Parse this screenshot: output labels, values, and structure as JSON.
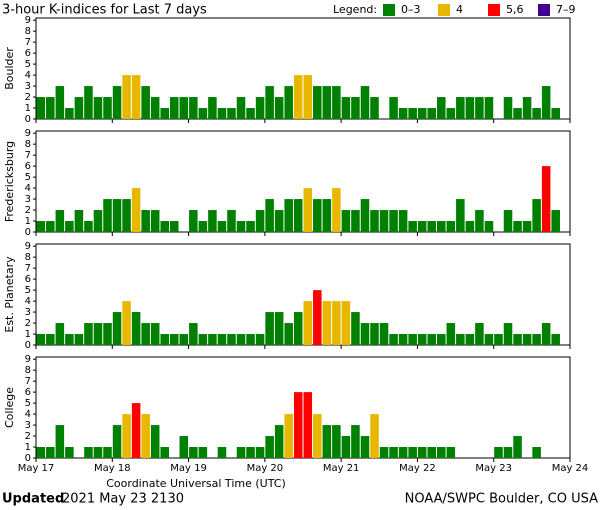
{
  "title": "3-hour K-indices for Last 7 days",
  "legend": {
    "title": "Legend:",
    "items": [
      {
        "label": "0–3",
        "color": "#008000"
      },
      {
        "label": "4",
        "color": "#e8b800"
      },
      {
        "label": "5,6",
        "color": "#ff0000"
      },
      {
        "label": "7–9",
        "color": "#400090"
      }
    ]
  },
  "chart_data": [
    {
      "type": "bar",
      "ylabel": "Boulder",
      "ylim": [
        0,
        9.2
      ],
      "yticks": [
        0,
        1,
        2,
        3,
        4,
        5,
        6,
        7,
        8,
        9
      ],
      "values": [
        2,
        2,
        3,
        1,
        2,
        3,
        2,
        2,
        3,
        4,
        4,
        3,
        2,
        1,
        2,
        2,
        2,
        1,
        2,
        1,
        1,
        2,
        1,
        2,
        3,
        2,
        3,
        4,
        4,
        3,
        3,
        3,
        2,
        2,
        3,
        2,
        0,
        2,
        1,
        1,
        1,
        1,
        2,
        1,
        2,
        2,
        2,
        2,
        0,
        2,
        1,
        2,
        1,
        3,
        1,
        0
      ]
    },
    {
      "type": "bar",
      "ylabel": "Fredericksburg",
      "ylim": [
        0,
        9.2
      ],
      "yticks": [
        0,
        1,
        2,
        3,
        4,
        5,
        6,
        7,
        8,
        9
      ],
      "values": [
        1,
        1,
        2,
        1,
        2,
        1,
        2,
        3,
        3,
        3,
        4,
        2,
        2,
        1,
        1,
        0,
        2,
        1,
        2,
        1,
        2,
        1,
        1,
        2,
        3,
        2,
        3,
        3,
        4,
        3,
        3,
        4,
        2,
        2,
        3,
        2,
        2,
        2,
        2,
        1,
        1,
        1,
        1,
        1,
        3,
        1,
        2,
        1,
        0,
        2,
        1,
        1,
        3,
        6,
        2,
        0
      ]
    },
    {
      "type": "bar",
      "ylabel": "Est. Planetary",
      "ylim": [
        0,
        9.2
      ],
      "yticks": [
        0,
        1,
        2,
        3,
        4,
        5,
        6,
        7,
        8,
        9
      ],
      "values": [
        1,
        1,
        2,
        1,
        1,
        2,
        2,
        2,
        3,
        4,
        3,
        2,
        2,
        1,
        1,
        1,
        2,
        1,
        1,
        1,
        1,
        1,
        1,
        1,
        3,
        3,
        2,
        3,
        4,
        5,
        4,
        4,
        4,
        3,
        2,
        2,
        2,
        1,
        1,
        1,
        1,
        1,
        1,
        2,
        1,
        1,
        2,
        1,
        1,
        2,
        1,
        1,
        1,
        2,
        1,
        0
      ]
    },
    {
      "type": "bar",
      "ylabel": "College",
      "ylim": [
        0,
        9.2
      ],
      "yticks": [
        0,
        1,
        2,
        3,
        4,
        5,
        6,
        7,
        8,
        9
      ],
      "values": [
        1,
        1,
        3,
        1,
        0,
        1,
        1,
        1,
        3,
        4,
        5,
        4,
        3,
        1,
        0,
        2,
        1,
        1,
        0,
        1,
        0,
        1,
        1,
        1,
        2,
        3,
        4,
        6,
        6,
        4,
        3,
        3,
        2,
        3,
        2,
        4,
        1,
        1,
        1,
        1,
        1,
        1,
        1,
        1,
        0,
        0,
        0,
        0,
        1,
        1,
        2,
        0,
        1,
        0,
        0,
        0
      ]
    }
  ],
  "x_axis": {
    "label": "Coordinate Universal Time (UTC)",
    "xlim": [
      0,
      7
    ],
    "xticks": [
      {
        "value": 0,
        "label": "May 17"
      },
      {
        "value": 1,
        "label": "May 18"
      },
      {
        "value": 2,
        "label": "May 19"
      },
      {
        "value": 3,
        "label": "May 20"
      },
      {
        "value": 4,
        "label": "May 21"
      },
      {
        "value": 5,
        "label": "May 22"
      },
      {
        "value": 6,
        "label": "May 23"
      },
      {
        "value": 7,
        "label": "May 24"
      }
    ]
  },
  "footer": {
    "updated_label": "Updated",
    "updated": "2021 May 23 2130",
    "credit": "NOAA/SWPC Boulder, CO USA"
  }
}
